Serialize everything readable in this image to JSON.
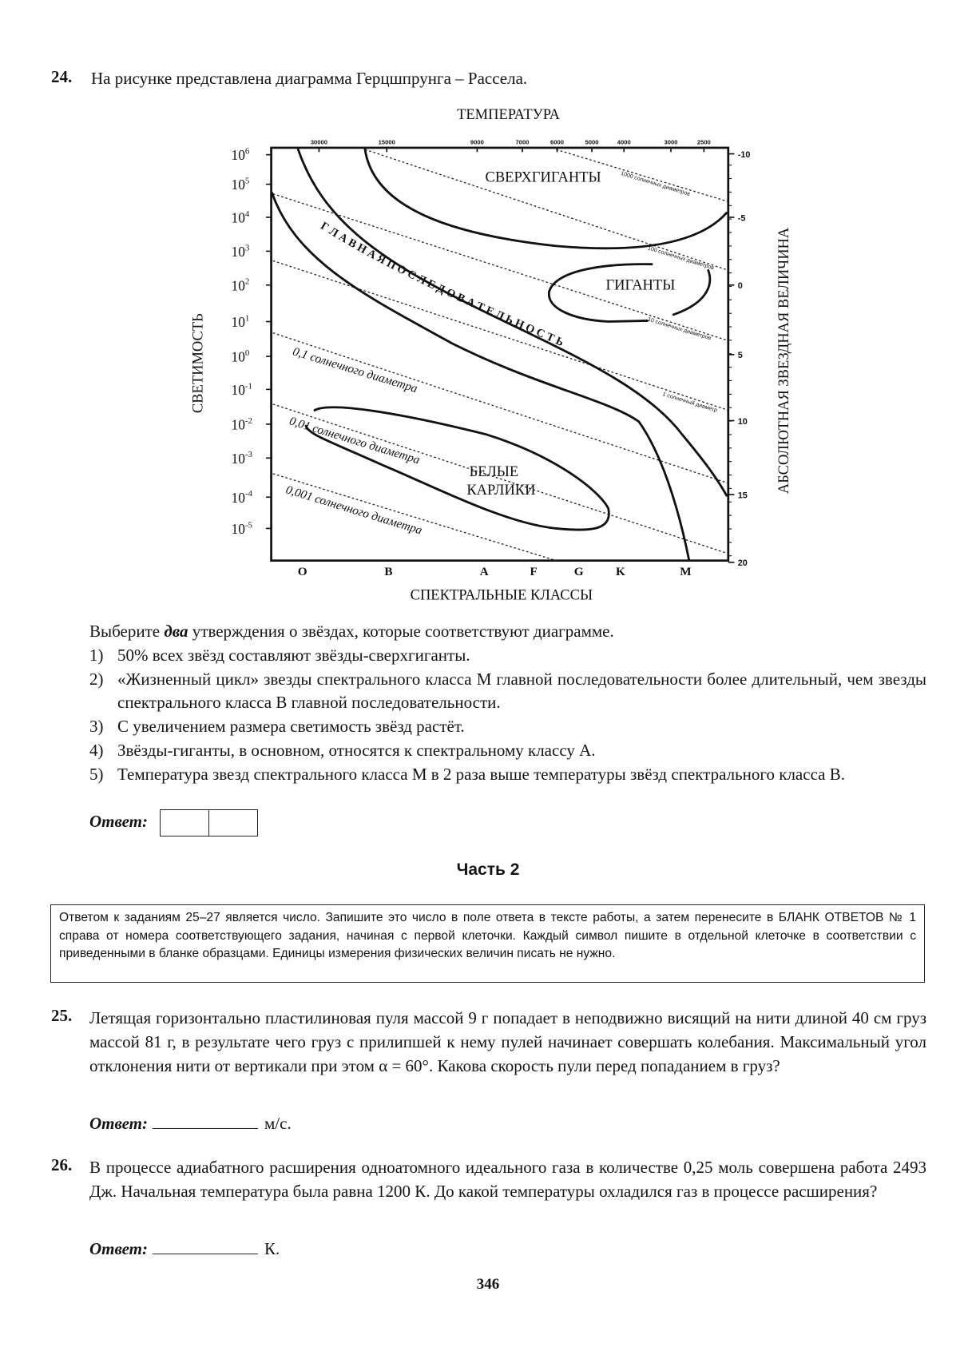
{
  "q24": {
    "number": "24.",
    "intro": "На рисунке представлена диаграмма Герцшпрунга – Рассела.",
    "diagram": {
      "top_axis_title": "ТЕМПЕРАТУРА",
      "bottom_axis_title": "СПЕКТРАЛЬНЫЕ КЛАССЫ",
      "left_axis_title": "СВЕТИМОСТЬ",
      "right_axis_title": "АБСОЛЮТНАЯ ЗВЕЗДНАЯ ВЕЛИЧИНА",
      "temperatures": [
        "30000",
        "15000",
        "9000",
        "7000",
        "6000",
        "5000",
        "4000",
        "3000",
        "2500"
      ],
      "luminosity_exponents": [
        "6",
        "5",
        "4",
        "3",
        "2",
        "1",
        "0",
        "-1",
        "-2",
        "-3",
        "-4",
        "-5"
      ],
      "luminosity_base": "10",
      "magnitudes": [
        "-10",
        "-5",
        "0",
        "5",
        "10",
        "15",
        "20"
      ],
      "spectral_classes": [
        "O",
        "B",
        "A",
        "F",
        "G",
        "K",
        "M"
      ],
      "regions": {
        "supergiants": "СВЕРХГИГАНТЫ",
        "giants": "ГИГАНТЫ",
        "main_sequence": "Г Л А В Н А Я    П О С Л Е Д О В А Т Е Л Ь Н О С Т Ь",
        "white_dwarfs_1": "БЕЛЫЕ",
        "white_dwarfs_2": "КАРЛИКИ"
      },
      "diameters": {
        "d1000": "1000 солнечных диаметров",
        "d100": "100 солнечных диаметров",
        "d10": "10 солнечных диаметров",
        "d1": "1 солнечный диаметр",
        "d01": "0,1 солнечного диаметра",
        "d001": "0,01 солнечного диаметра",
        "d0001": "0,001 солнечного диаметра"
      }
    },
    "prompt_pre": "Выберите ",
    "prompt_em": "два",
    "prompt_post": " утверждения о звёздах, которые соответствуют диаграмме.",
    "options": [
      {
        "n": "1)",
        "text": "50% всех звёзд составляют звёзды-сверхгиганты."
      },
      {
        "n": "2)",
        "text": "«Жизненный цикл» звезды спектрального класса M главной последовательности более длительный, чем звезды спектрального класса B главной последовательности."
      },
      {
        "n": "3)",
        "text": "С увеличением размера светимость звёзд растёт."
      },
      {
        "n": "4)",
        "text": "Звёзды-гиганты, в основном, относятся к спектральному классу A."
      },
      {
        "n": "5)",
        "text": "Температура звезд спектрального класса M в 2 раза выше температуры звёзд спектрального класса B."
      }
    ],
    "answer_label": "Ответ:"
  },
  "part2": {
    "title": "Часть 2",
    "instructions": "Ответом к заданиям 25–27 является число. Запишите это число в поле ответа в тексте работы, а затем перенесите в БЛАНК ОТВЕТОВ № 1 справа от номера соответствующего задания, начиная с первой клеточки. Каждый символ пишите в отдельной клеточке в соответствии с приведенными в бланке образцами. Единицы измерения физических величин писать не нужно."
  },
  "q25": {
    "number": "25.",
    "text": "Летящая горизонтально пластилиновая пуля массой 9 г попадает в неподвижно висящий на нити длиной 40 см груз массой 81 г, в результате чего груз с прилипшей к нему пулей начинает совершать колебания. Максимальный угол отклонения нити от вертикали при этом α = 60°. Какова скорость пули перед попаданием в груз?",
    "answer_label": "Ответ:",
    "unit": "м/с."
  },
  "q26": {
    "number": "26.",
    "text": "В процессе адиабатного расширения одноатомного идеального газа в количестве 0,25 моль совершена работа 2493 Дж. Начальная температура была равна 1200 К. До какой температуры охладился газ в процессе расширения?",
    "answer_label": "Ответ:",
    "unit": "К."
  },
  "page_number": "346"
}
